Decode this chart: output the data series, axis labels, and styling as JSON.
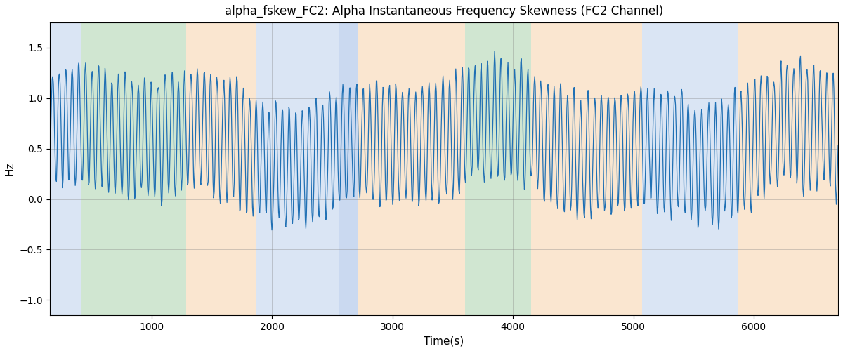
{
  "title": "alpha_fskew_FC2: Alpha Instantaneous Frequency Skewness (FC2 Channel)",
  "xlabel": "Time(s)",
  "ylabel": "Hz",
  "xlim": [
    155,
    6700
  ],
  "ylim": [
    -1.15,
    1.75
  ],
  "yticks": [
    -1.0,
    -0.5,
    0.0,
    0.5,
    1.0,
    1.5
  ],
  "xticks": [
    1000,
    2000,
    3000,
    4000,
    5000,
    6000
  ],
  "line_color": "#2070b4",
  "line_width": 0.9,
  "bg_bands": [
    {
      "xmin": 155,
      "xmax": 420,
      "color": "#aec6e8",
      "alpha": 0.45
    },
    {
      "xmin": 420,
      "xmax": 1290,
      "color": "#98c99a",
      "alpha": 0.45
    },
    {
      "xmin": 1290,
      "xmax": 1870,
      "color": "#f5c897",
      "alpha": 0.45
    },
    {
      "xmin": 1870,
      "xmax": 2560,
      "color": "#aec6e8",
      "alpha": 0.45
    },
    {
      "xmin": 2560,
      "xmax": 2710,
      "color": "#aec6e8",
      "alpha": 0.65
    },
    {
      "xmin": 2710,
      "xmax": 3600,
      "color": "#f5c897",
      "alpha": 0.45
    },
    {
      "xmin": 3600,
      "xmax": 4150,
      "color": "#98c99a",
      "alpha": 0.45
    },
    {
      "xmin": 4150,
      "xmax": 4430,
      "color": "#f5c897",
      "alpha": 0.45
    },
    {
      "xmin": 4430,
      "xmax": 5070,
      "color": "#f5c897",
      "alpha": 0.45
    },
    {
      "xmin": 5070,
      "xmax": 5870,
      "color": "#aec6e8",
      "alpha": 0.45
    },
    {
      "xmin": 5870,
      "xmax": 6700,
      "color": "#f5c897",
      "alpha": 0.45
    }
  ],
  "seed": 1234,
  "n_points": 1300,
  "t_start": 155,
  "t_end": 6700
}
